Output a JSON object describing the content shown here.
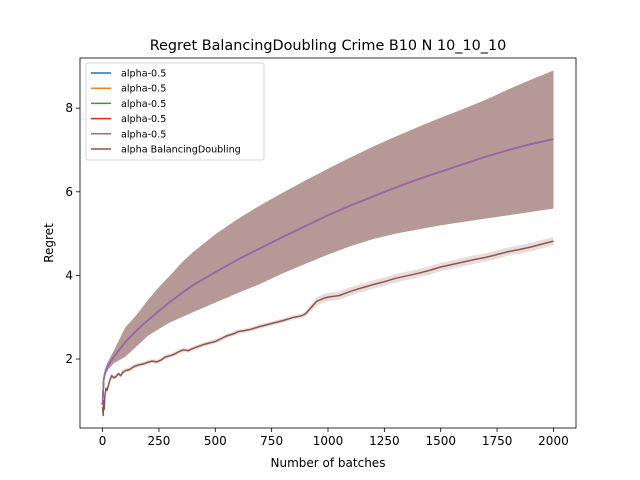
{
  "chart_data": {
    "type": "line",
    "title": "Regret BalancingDoubling Crime B10 N 10_10_10",
    "xlabel": "Number of batches",
    "ylabel": "Regret",
    "xlim": [
      -100,
      2100
    ],
    "ylim": [
      0.35,
      9.2
    ],
    "xticks": [
      0,
      250,
      500,
      750,
      1000,
      1250,
      1500,
      1750,
      2000
    ],
    "yticks": [
      2,
      4,
      6,
      8
    ],
    "grid": false,
    "legend_position": "top-left",
    "series": [
      {
        "name": "alpha-0.5",
        "color": "#1f77b4",
        "x": [
          0,
          5,
          10,
          25,
          50,
          100,
          150,
          200,
          250,
          300,
          350,
          400,
          500,
          600,
          700,
          800,
          900,
          1000,
          1100,
          1200,
          1300,
          1400,
          1500,
          1600,
          1700,
          1800,
          1900,
          2000
        ],
        "y": [
          0.9,
          1.5,
          1.65,
          1.85,
          2.05,
          2.4,
          2.68,
          2.92,
          3.15,
          3.37,
          3.57,
          3.76,
          4.08,
          4.38,
          4.65,
          4.92,
          5.18,
          5.44,
          5.67,
          5.89,
          6.1,
          6.3,
          6.48,
          6.66,
          6.84,
          7.0,
          7.14,
          7.26
        ],
        "band_lower": [
          0.85,
          1.45,
          1.6,
          1.75,
          1.9,
          2.05,
          2.3,
          2.55,
          2.72,
          2.88,
          3.0,
          3.12,
          3.35,
          3.58,
          3.8,
          4.05,
          4.28,
          4.5,
          4.7,
          4.87,
          5.0,
          5.1,
          5.2,
          5.28,
          5.36,
          5.44,
          5.52,
          5.6
        ],
        "band_upper": [
          0.95,
          1.55,
          1.75,
          1.95,
          2.2,
          2.75,
          3.05,
          3.4,
          3.72,
          4.0,
          4.3,
          4.55,
          4.98,
          5.35,
          5.68,
          5.98,
          6.27,
          6.55,
          6.82,
          7.08,
          7.32,
          7.55,
          7.77,
          7.98,
          8.2,
          8.45,
          8.68,
          8.9
        ]
      },
      {
        "name": "alpha-0.5",
        "color": "#ff7f0e",
        "x": [
          0,
          5,
          10,
          25,
          50,
          100,
          150,
          200,
          250,
          300,
          350,
          400,
          500,
          600,
          700,
          800,
          900,
          1000,
          1100,
          1200,
          1300,
          1400,
          1500,
          1600,
          1700,
          1800,
          1900,
          2000
        ],
        "y": [
          0.9,
          1.5,
          1.65,
          1.85,
          2.05,
          2.4,
          2.68,
          2.92,
          3.15,
          3.37,
          3.57,
          3.76,
          4.08,
          4.38,
          4.65,
          4.92,
          5.18,
          5.44,
          5.67,
          5.89,
          6.1,
          6.3,
          6.48,
          6.66,
          6.84,
          7.0,
          7.14,
          7.26
        ],
        "band_lower": [
          0.85,
          1.45,
          1.6,
          1.75,
          1.9,
          2.05,
          2.3,
          2.55,
          2.72,
          2.88,
          3.0,
          3.12,
          3.35,
          3.58,
          3.8,
          4.05,
          4.28,
          4.5,
          4.7,
          4.87,
          5.0,
          5.1,
          5.2,
          5.28,
          5.36,
          5.44,
          5.52,
          5.6
        ],
        "band_upper": [
          0.95,
          1.55,
          1.75,
          1.95,
          2.2,
          2.75,
          3.05,
          3.4,
          3.72,
          4.0,
          4.3,
          4.55,
          4.98,
          5.35,
          5.68,
          5.98,
          6.27,
          6.55,
          6.82,
          7.08,
          7.32,
          7.55,
          7.77,
          7.98,
          8.2,
          8.45,
          8.68,
          8.9
        ]
      },
      {
        "name": "alpha-0.5",
        "color": "#2ca02c",
        "x": [
          0,
          5,
          10,
          25,
          50,
          100,
          150,
          200,
          250,
          300,
          350,
          400,
          500,
          600,
          700,
          800,
          900,
          1000,
          1100,
          1200,
          1300,
          1400,
          1500,
          1600,
          1700,
          1800,
          1900,
          2000
        ],
        "y": [
          0.9,
          1.5,
          1.65,
          1.85,
          2.05,
          2.4,
          2.68,
          2.92,
          3.15,
          3.37,
          3.57,
          3.76,
          4.08,
          4.38,
          4.65,
          4.92,
          5.18,
          5.44,
          5.67,
          5.89,
          6.1,
          6.3,
          6.48,
          6.66,
          6.84,
          7.0,
          7.14,
          7.26
        ],
        "band_lower": [
          0.85,
          1.45,
          1.6,
          1.75,
          1.9,
          2.05,
          2.3,
          2.55,
          2.72,
          2.88,
          3.0,
          3.12,
          3.35,
          3.58,
          3.8,
          4.05,
          4.28,
          4.5,
          4.7,
          4.87,
          5.0,
          5.1,
          5.2,
          5.28,
          5.36,
          5.44,
          5.52,
          5.6
        ],
        "band_upper": [
          0.95,
          1.55,
          1.75,
          1.95,
          2.2,
          2.75,
          3.05,
          3.4,
          3.72,
          4.0,
          4.3,
          4.55,
          4.98,
          5.35,
          5.68,
          5.98,
          6.27,
          6.55,
          6.82,
          7.08,
          7.32,
          7.55,
          7.77,
          7.98,
          8.2,
          8.45,
          8.68,
          8.9
        ]
      },
      {
        "name": "alpha-0.5",
        "color": "#d62728",
        "x": [
          0,
          5,
          10,
          25,
          50,
          100,
          150,
          200,
          250,
          300,
          350,
          400,
          500,
          600,
          700,
          800,
          900,
          1000,
          1100,
          1200,
          1300,
          1400,
          1500,
          1600,
          1700,
          1800,
          1900,
          2000
        ],
        "y": [
          0.9,
          1.5,
          1.65,
          1.85,
          2.05,
          2.4,
          2.68,
          2.92,
          3.15,
          3.37,
          3.57,
          3.76,
          4.08,
          4.38,
          4.65,
          4.92,
          5.18,
          5.44,
          5.67,
          5.89,
          6.1,
          6.3,
          6.48,
          6.66,
          6.84,
          7.0,
          7.14,
          7.26
        ],
        "band_lower": [
          0.85,
          1.45,
          1.6,
          1.75,
          1.9,
          2.05,
          2.3,
          2.55,
          2.72,
          2.88,
          3.0,
          3.12,
          3.35,
          3.58,
          3.8,
          4.05,
          4.28,
          4.5,
          4.7,
          4.87,
          5.0,
          5.1,
          5.2,
          5.28,
          5.36,
          5.44,
          5.52,
          5.6
        ],
        "band_upper": [
          0.95,
          1.55,
          1.75,
          1.95,
          2.2,
          2.75,
          3.05,
          3.4,
          3.72,
          4.0,
          4.3,
          4.55,
          4.98,
          5.35,
          5.68,
          5.98,
          6.27,
          6.55,
          6.82,
          7.08,
          7.32,
          7.55,
          7.77,
          7.98,
          8.2,
          8.45,
          8.68,
          8.9
        ]
      },
      {
        "name": "alpha-0.5",
        "color": "#9467bd",
        "x": [
          0,
          5,
          10,
          25,
          50,
          100,
          150,
          200,
          250,
          300,
          350,
          400,
          500,
          600,
          700,
          800,
          900,
          1000,
          1100,
          1200,
          1300,
          1400,
          1500,
          1600,
          1700,
          1800,
          1900,
          2000
        ],
        "y": [
          0.9,
          1.5,
          1.65,
          1.85,
          2.05,
          2.4,
          2.68,
          2.92,
          3.15,
          3.37,
          3.57,
          3.76,
          4.08,
          4.38,
          4.65,
          4.92,
          5.18,
          5.44,
          5.67,
          5.89,
          6.1,
          6.3,
          6.48,
          6.66,
          6.84,
          7.0,
          7.14,
          7.26
        ],
        "band_lower": [
          0.85,
          1.45,
          1.6,
          1.75,
          1.9,
          2.05,
          2.3,
          2.55,
          2.72,
          2.88,
          3.0,
          3.12,
          3.35,
          3.58,
          3.8,
          4.05,
          4.28,
          4.5,
          4.7,
          4.87,
          5.0,
          5.1,
          5.2,
          5.28,
          5.36,
          5.44,
          5.52,
          5.6
        ],
        "band_upper": [
          0.95,
          1.55,
          1.75,
          1.95,
          2.2,
          2.75,
          3.05,
          3.4,
          3.72,
          4.0,
          4.3,
          4.55,
          4.98,
          5.35,
          5.68,
          5.98,
          6.27,
          6.55,
          6.82,
          7.08,
          7.32,
          7.55,
          7.77,
          7.98,
          8.2,
          8.45,
          8.68,
          8.9
        ]
      },
      {
        "name": "alpha BalancingDoubling",
        "color": "#8c564b",
        "x": [
          0,
          3,
          5,
          8,
          10,
          15,
          20,
          30,
          40,
          50,
          60,
          70,
          80,
          90,
          100,
          120,
          140,
          160,
          180,
          200,
          220,
          240,
          260,
          280,
          300,
          320,
          340,
          360,
          380,
          400,
          450,
          500,
          550,
          580,
          600,
          650,
          700,
          750,
          800,
          850,
          880,
          900,
          920,
          950,
          980,
          1000,
          1050,
          1100,
          1150,
          1200,
          1250,
          1300,
          1350,
          1400,
          1450,
          1500,
          1550,
          1600,
          1650,
          1700,
          1750,
          1800,
          1850,
          1900,
          1950,
          2000
        ],
        "y": [
          0.85,
          0.65,
          1.0,
          0.8,
          1.1,
          1.3,
          1.25,
          1.45,
          1.6,
          1.55,
          1.58,
          1.65,
          1.6,
          1.68,
          1.72,
          1.75,
          1.82,
          1.86,
          1.88,
          1.92,
          1.95,
          1.93,
          1.98,
          2.05,
          2.08,
          2.12,
          2.18,
          2.22,
          2.2,
          2.25,
          2.35,
          2.42,
          2.55,
          2.6,
          2.65,
          2.7,
          2.78,
          2.85,
          2.92,
          3.0,
          3.03,
          3.08,
          3.2,
          3.38,
          3.45,
          3.48,
          3.52,
          3.62,
          3.7,
          3.78,
          3.85,
          3.93,
          3.99,
          4.05,
          4.12,
          4.2,
          4.26,
          4.32,
          4.38,
          4.43,
          4.5,
          4.57,
          4.62,
          4.68,
          4.75,
          4.82
        ],
        "band_lower": [
          0.8,
          0.6,
          0.95,
          0.75,
          1.05,
          1.25,
          1.2,
          1.4,
          1.55,
          1.5,
          1.53,
          1.6,
          1.55,
          1.63,
          1.67,
          1.7,
          1.77,
          1.81,
          1.83,
          1.87,
          1.9,
          1.88,
          1.93,
          2.0,
          2.03,
          2.07,
          2.13,
          2.17,
          2.15,
          2.2,
          2.3,
          2.37,
          2.5,
          2.55,
          2.6,
          2.65,
          2.73,
          2.8,
          2.87,
          2.95,
          2.98,
          3.02,
          3.12,
          3.28,
          3.35,
          3.38,
          3.42,
          3.52,
          3.6,
          3.68,
          3.75,
          3.83,
          3.89,
          3.95,
          4.02,
          4.1,
          4.16,
          4.22,
          4.28,
          4.33,
          4.4,
          4.47,
          4.52,
          4.58,
          4.65,
          4.72
        ],
        "band_upper": [
          0.9,
          0.7,
          1.05,
          0.85,
          1.15,
          1.35,
          1.3,
          1.5,
          1.65,
          1.6,
          1.63,
          1.7,
          1.65,
          1.73,
          1.77,
          1.8,
          1.87,
          1.91,
          1.93,
          1.97,
          2.0,
          1.98,
          2.03,
          2.1,
          2.13,
          2.17,
          2.23,
          2.27,
          2.25,
          2.3,
          2.4,
          2.47,
          2.6,
          2.65,
          2.7,
          2.75,
          2.83,
          2.9,
          2.97,
          3.05,
          3.08,
          3.14,
          3.28,
          3.48,
          3.55,
          3.58,
          3.62,
          3.72,
          3.8,
          3.88,
          3.95,
          4.03,
          4.09,
          4.15,
          4.22,
          4.3,
          4.36,
          4.42,
          4.48,
          4.53,
          4.6,
          4.67,
          4.72,
          4.78,
          4.85,
          4.92
        ]
      }
    ]
  }
}
